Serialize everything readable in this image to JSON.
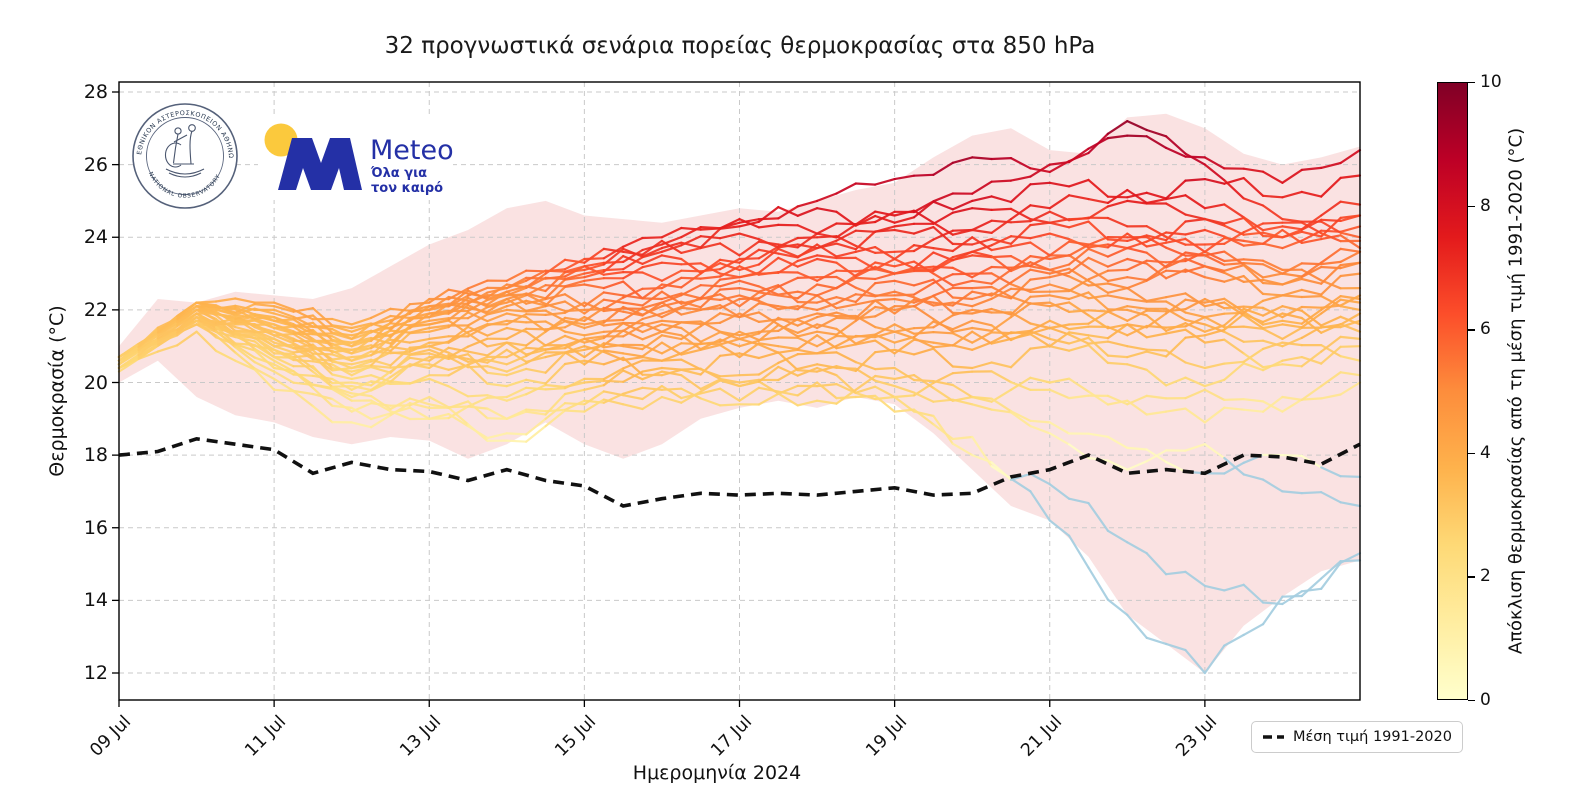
{
  "title": "32 προγνωστικά σενάρια πορείας θερμοκρασίας στα 850 hPa",
  "axes": {
    "y_label": "Θερμοκρασία (°C)",
    "x_label": "Ημερομηνία 2024",
    "y_ticks": [
      12,
      14,
      16,
      18,
      20,
      22,
      24,
      26,
      28
    ],
    "x_ticks": [
      "09 Jul",
      "11 Jul",
      "13 Jul",
      "15 Jul",
      "17 Jul",
      "19 Jul",
      "21 Jul",
      "23 Jul"
    ]
  },
  "legend": {
    "label": "Μέση τιμή 1991-2020"
  },
  "colorbar": {
    "label": "Απόκλιση θερμοκρασίας από τη μέση τιμή 1991-2020 (°C)",
    "ticks": [
      0,
      2,
      4,
      6,
      8,
      10
    ],
    "min": 0,
    "max": 10
  },
  "branding": {
    "observatory_ring_top": "ΕΘΝΙΚΟΝ ΑΣΤΕΡΟΣΚΟΠΕΙΟΝ ΑΘΗΝΩΝ",
    "observatory_ring_bottom": "NATIONAL OBSERVATORY ATHENS",
    "meteo_name": "Meteo",
    "meteo_tagline_line1": "Όλα για",
    "meteo_tagline_line2": "τον καιρό",
    "meteo_blue": "#2430a6",
    "meteo_yellow": "#fbc93d"
  },
  "chart_data": {
    "type": "line",
    "title": "32 προγνωστικά σενάρια πορείας θερμοκρασίας στα 850 hPa",
    "xlabel": "Ημερομηνία 2024",
    "ylabel": "Θερμοκρασία (°C)",
    "x_start_date": "09 Jul",
    "x_end_date": "25 Jul",
    "x_days_span": 16,
    "x_tick_days": [
      0,
      2,
      4,
      6,
      8,
      10,
      12,
      14
    ],
    "ylim": [
      11.26,
      28.28
    ],
    "grid": true,
    "colormap_stops": [
      "#ffffcc",
      "#ffeda0",
      "#fed976",
      "#feb24c",
      "#fd8d3c",
      "#fc4e2a",
      "#e31a1c",
      "#bd0026",
      "#800026"
    ],
    "negative_color": "#a5cee0",
    "envelope_fill": "rgba(224,82,82,0.17)",
    "mean_line_color": "#111111",
    "grid_color": "#c9c9c9",
    "climate_mean": {
      "name": "Μέση τιμή 1991-2020",
      "step_days": 0.5,
      "values": [
        18.0,
        18.1,
        18.45,
        18.3,
        18.15,
        17.5,
        17.8,
        17.6,
        17.55,
        17.3,
        17.6,
        17.3,
        17.15,
        16.6,
        16.8,
        16.95,
        16.9,
        16.95,
        16.9,
        17.0,
        17.1,
        16.9,
        16.95,
        17.4,
        17.6,
        18.0,
        17.5,
        17.6,
        17.5,
        18.0,
        17.95,
        17.75,
        18.3
      ]
    },
    "envelope": {
      "step_days": 0.5,
      "min": [
        20.0,
        20.6,
        19.6,
        19.1,
        18.9,
        18.5,
        18.3,
        18.5,
        18.4,
        17.9,
        18.3,
        18.9,
        18.3,
        17.9,
        18.3,
        19.0,
        19.3,
        19.5,
        19.3,
        19.6,
        19.4,
        18.6,
        17.6,
        16.6,
        16.2,
        15.2,
        13.6,
        12.8,
        12.0,
        13.3,
        14.1,
        14.8,
        15.1
      ],
      "max": [
        21.0,
        22.3,
        22.2,
        22.5,
        22.4,
        22.3,
        22.6,
        23.2,
        23.8,
        24.2,
        24.8,
        25.0,
        24.6,
        24.5,
        24.4,
        24.6,
        24.8,
        24.7,
        25.0,
        25.3,
        25.5,
        26.2,
        26.8,
        27.0,
        26.4,
        26.3,
        27.3,
        27.4,
        27.0,
        26.3,
        26.0,
        26.2,
        26.5
      ]
    },
    "members_step_days": 1,
    "members": [
      [
        20.4,
        21.6,
        20.1,
        19.2,
        19.6,
        19.0,
        19.5,
        19.8,
        19.4,
        19.9,
        19.6,
        20.3,
        19.8,
        19.4,
        19.8,
        19.2,
        20.0
      ],
      [
        20.5,
        21.9,
        20.6,
        19.6,
        20.1,
        19.5,
        20.0,
        20.4,
        20.0,
        20.5,
        19.9,
        19.4,
        18.6,
        17.6,
        18.3,
        17.0,
        16.6
      ],
      [
        20.3,
        21.4,
        19.8,
        18.9,
        19.3,
        18.4,
        19.2,
        19.6,
        19.9,
        19.5,
        20.1,
        19.6,
        20.0,
        19.5,
        18.9,
        19.6,
        20.2
      ],
      [
        20.6,
        22.0,
        20.9,
        20.1,
        20.5,
        19.9,
        20.6,
        20.2,
        20.8,
        20.3,
        20.9,
        20.4,
        21.0,
        20.5,
        19.9,
        20.6,
        21.0
      ],
      [
        20.4,
        21.7,
        20.3,
        19.5,
        19.0,
        19.6,
        20.1,
        20.6,
        20.2,
        20.8,
        20.4,
        19.6,
        18.9,
        18.2,
        17.5,
        18.0,
        17.4
      ],
      [
        20.7,
        22.1,
        21.2,
        20.4,
        20.9,
        20.3,
        21.0,
        20.6,
        21.2,
        20.8,
        21.4,
        20.9,
        21.5,
        21.0,
        20.4,
        21.1,
        20.6
      ],
      [
        20.5,
        21.8,
        20.7,
        19.9,
        20.4,
        20.9,
        20.5,
        21.1,
        20.7,
        21.3,
        20.8,
        21.4,
        21.0,
        21.6,
        21.1,
        20.5,
        21.2
      ],
      [
        20.6,
        22.0,
        21.0,
        20.3,
        20.8,
        20.2,
        20.9,
        21.4,
        21.0,
        21.6,
        21.1,
        21.7,
        21.2,
        20.7,
        21.3,
        21.9,
        21.4
      ],
      [
        20.4,
        21.6,
        20.5,
        19.8,
        20.2,
        20.7,
        21.2,
        20.8,
        21.4,
        21.0,
        21.6,
        21.1,
        21.7,
        21.3,
        21.8,
        21.2,
        21.9
      ],
      [
        20.7,
        22.2,
        21.3,
        20.6,
        21.0,
        20.5,
        21.2,
        21.7,
        21.3,
        21.9,
        21.4,
        22.0,
        21.5,
        22.1,
        21.6,
        21.0,
        21.7
      ],
      [
        20.5,
        21.9,
        20.8,
        20.0,
        20.6,
        21.1,
        20.7,
        21.3,
        21.8,
        21.4,
        22.0,
        21.5,
        22.1,
        21.6,
        22.2,
        21.7,
        22.3
      ],
      [
        20.6,
        22.1,
        21.1,
        20.5,
        21.0,
        21.5,
        21.1,
        21.6,
        21.2,
        21.8,
        22.3,
        21.9,
        22.4,
        22.0,
        21.4,
        22.1,
        21.6
      ],
      [
        20.4,
        21.7,
        20.9,
        20.2,
        20.7,
        21.2,
        21.8,
        21.4,
        21.9,
        21.5,
        22.1,
        22.6,
        22.2,
        21.7,
        22.3,
        21.8,
        22.4
      ],
      [
        20.7,
        22.0,
        21.4,
        20.8,
        21.2,
        21.7,
        21.3,
        21.9,
        22.4,
        22.0,
        22.5,
        22.1,
        22.7,
        22.3,
        21.8,
        22.4,
        22.0
      ],
      [
        20.5,
        21.8,
        21.0,
        20.4,
        21.6,
        21.1,
        21.7,
        22.2,
        21.8,
        22.4,
        21.9,
        22.5,
        23.0,
        22.6,
        22.1,
        21.6,
        22.2
      ],
      [
        20.6,
        22.1,
        21.5,
        20.9,
        21.4,
        21.9,
        21.5,
        22.1,
        22.6,
        22.2,
        22.8,
        22.3,
        22.9,
        23.4,
        22.9,
        22.4,
        23.0
      ],
      [
        20.4,
        21.6,
        21.2,
        20.6,
        21.1,
        21.6,
        22.2,
        21.8,
        22.3,
        22.9,
        22.4,
        23.0,
        22.5,
        23.1,
        23.6,
        23.1,
        22.6
      ],
      [
        20.7,
        22.2,
        21.6,
        21.0,
        21.5,
        22.0,
        21.6,
        22.2,
        22.8,
        22.4,
        23.0,
        23.5,
        23.1,
        22.6,
        23.2,
        22.7,
        23.3
      ],
      [
        20.5,
        21.9,
        21.3,
        20.7,
        21.8,
        22.3,
        21.9,
        22.5,
        22.1,
        22.7,
        23.2,
        22.8,
        23.4,
        22.9,
        23.5,
        23.0,
        23.6
      ],
      [
        20.6,
        22.0,
        21.7,
        21.1,
        21.6,
        22.1,
        22.7,
        22.3,
        22.9,
        23.4,
        23.0,
        23.6,
        23.1,
        23.7,
        23.2,
        22.7,
        23.3
      ],
      [
        20.4,
        21.7,
        21.4,
        20.8,
        21.9,
        22.4,
        22.0,
        22.6,
        23.2,
        22.8,
        23.4,
        22.9,
        23.5,
        24.0,
        23.5,
        23.0,
        23.6
      ],
      [
        20.7,
        22.1,
        21.8,
        21.2,
        21.7,
        22.2,
        22.8,
        23.3,
        22.9,
        23.5,
        23.0,
        23.6,
        24.1,
        23.7,
        24.2,
        23.7,
        24.3
      ],
      [
        20.5,
        21.8,
        21.5,
        20.9,
        22.0,
        22.5,
        22.1,
        22.7,
        23.3,
        23.8,
        23.4,
        24.0,
        23.5,
        24.1,
        23.6,
        24.2,
        23.7
      ],
      [
        20.6,
        22.2,
        21.9,
        21.3,
        21.8,
        22.3,
        22.9,
        23.5,
        23.1,
        23.7,
        24.2,
        23.8,
        24.4,
        23.9,
        24.5,
        24.0,
        24.6
      ],
      [
        20.4,
        21.9,
        21.6,
        21.0,
        22.1,
        22.6,
        23.2,
        22.8,
        23.4,
        24.0,
        23.6,
        24.2,
        24.7,
        24.3,
        23.8,
        24.4,
        23.9
      ],
      [
        20.7,
        22.0,
        22.0,
        21.4,
        21.9,
        22.4,
        23.0,
        23.6,
        24.1,
        23.7,
        24.3,
        24.8,
        24.4,
        25.0,
        24.5,
        24.0,
        24.6
      ],
      [
        20.5,
        21.8,
        21.7,
        21.1,
        22.2,
        22.7,
        23.3,
        23.9,
        23.5,
        24.1,
        24.6,
        24.2,
        24.8,
        25.3,
        24.8,
        24.3,
        24.9
      ],
      [
        20.6,
        22.1,
        22.1,
        21.5,
        22.0,
        22.5,
        23.1,
        23.7,
        24.3,
        24.8,
        24.4,
        25.0,
        25.5,
        25.1,
        25.6,
        25.1,
        25.7
      ],
      [
        20.4,
        22.0,
        21.8,
        21.2,
        22.3,
        22.8,
        23.4,
        24.0,
        24.5,
        24.1,
        24.7,
        25.2,
        26.0,
        26.8,
        26.2,
        25.5,
        26.4
      ],
      [
        20.7,
        22.2,
        22.2,
        21.6,
        22.1,
        22.6,
        23.2,
        23.8,
        24.4,
        25.0,
        25.6,
        26.2,
        25.8,
        27.2,
        26.0,
        24.5,
        24.0
      ],
      [
        20.5,
        21.7,
        20.4,
        19.3,
        19.0,
        18.6,
        19.4,
        19.9,
        19.5,
        20.0,
        19.2,
        18.5,
        16.2,
        13.6,
        12.0,
        14.1,
        15.1
      ],
      [
        20.6,
        21.8,
        20.7,
        19.7,
        19.4,
        19.0,
        19.8,
        20.3,
        19.9,
        20.4,
        19.6,
        18.0,
        17.2,
        15.6,
        14.4,
        13.9,
        15.3
      ]
    ]
  }
}
